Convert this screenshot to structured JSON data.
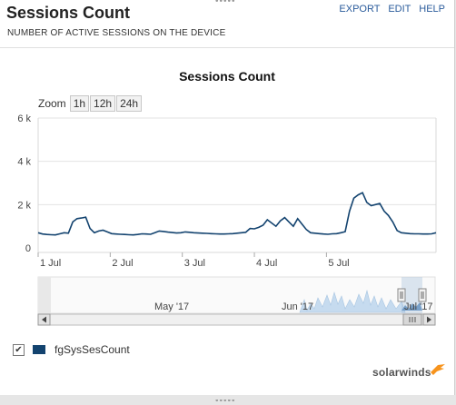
{
  "widget": {
    "title": "Sessions Count",
    "subtitle": "NUMBER OF ACTIVE SESSIONS ON THE DEVICE",
    "actions": [
      "EXPORT",
      "EDIT",
      "HELP"
    ]
  },
  "zoom": {
    "label": "Zoom",
    "options": [
      "1h",
      "12h",
      "24h"
    ]
  },
  "navigator": {
    "labels": [
      "May '17",
      "Jun '17",
      "Jul '17"
    ]
  },
  "legend": {
    "checked_mark": "✔",
    "series_name": "fgSysSesCount"
  },
  "brand": {
    "name": "solarwinds",
    "accent_color": "#f7941d"
  },
  "colors": {
    "series": "#13436f"
  },
  "chart_data": {
    "type": "line",
    "title": "Sessions Count",
    "xlabel": "",
    "ylabel": "",
    "ylim": [
      0,
      6000
    ],
    "yticks": [
      "6 k",
      "4 k",
      "2 k",
      "0"
    ],
    "xticks": [
      "1 Jul",
      "2 Jul",
      "3 Jul",
      "4 Jul",
      "5 Jul"
    ],
    "grid": true,
    "series": [
      {
        "name": "fgSysSesCount",
        "x": [
          0.0,
          0.06,
          0.12,
          0.18,
          0.24,
          0.3,
          0.36,
          0.42,
          0.48,
          0.54,
          0.6,
          0.66,
          0.72,
          0.78,
          0.84,
          0.9,
          0.96,
          1.02,
          1.08,
          1.14,
          1.2,
          1.26,
          1.32,
          1.38,
          1.44,
          1.5,
          1.56,
          1.62,
          1.68,
          1.74,
          1.8,
          1.86,
          1.92,
          1.98,
          2.04,
          2.1,
          2.16,
          2.22,
          2.28,
          2.34,
          2.4,
          2.46,
          2.52,
          2.58,
          2.64,
          2.7,
          2.76,
          2.82,
          2.88,
          2.94,
          3.0,
          3.06,
          3.12,
          3.18,
          3.24,
          3.3,
          3.36,
          3.42,
          3.48,
          3.54,
          3.6,
          3.66,
          3.72,
          3.78,
          3.84,
          3.9,
          3.96,
          4.02,
          4.08,
          4.14,
          4.2,
          4.26,
          4.32,
          4.38,
          4.44,
          4.5,
          4.56,
          4.62,
          4.68,
          4.74,
          4.8,
          4.86,
          4.92,
          4.98,
          5.04,
          5.1,
          5.16,
          5.22,
          5.28,
          5.34,
          5.4,
          5.46,
          5.52
        ],
        "y": [
          700,
          640,
          620,
          610,
          600,
          650,
          700,
          680,
          1200,
          1350,
          1380,
          1420,
          900,
          700,
          780,
          820,
          740,
          660,
          640,
          630,
          620,
          610,
          600,
          620,
          650,
          640,
          630,
          700,
          780,
          760,
          730,
          710,
          690,
          700,
          740,
          720,
          700,
          690,
          680,
          670,
          660,
          650,
          640,
          640,
          650,
          660,
          680,
          700,
          720,
          900,
          880,
          950,
          1050,
          1300,
          1150,
          1000,
          1250,
          1400,
          1200,
          1000,
          1350,
          1100,
          850,
          700,
          680,
          660,
          640,
          630,
          650,
          660,
          700,
          750,
          1700,
          2300,
          2450,
          2550,
          2100,
          1950,
          2000,
          2050,
          1700,
          1500,
          1200,
          800,
          700,
          680,
          660,
          650,
          650,
          640,
          640,
          650,
          700
        ]
      }
    ]
  }
}
